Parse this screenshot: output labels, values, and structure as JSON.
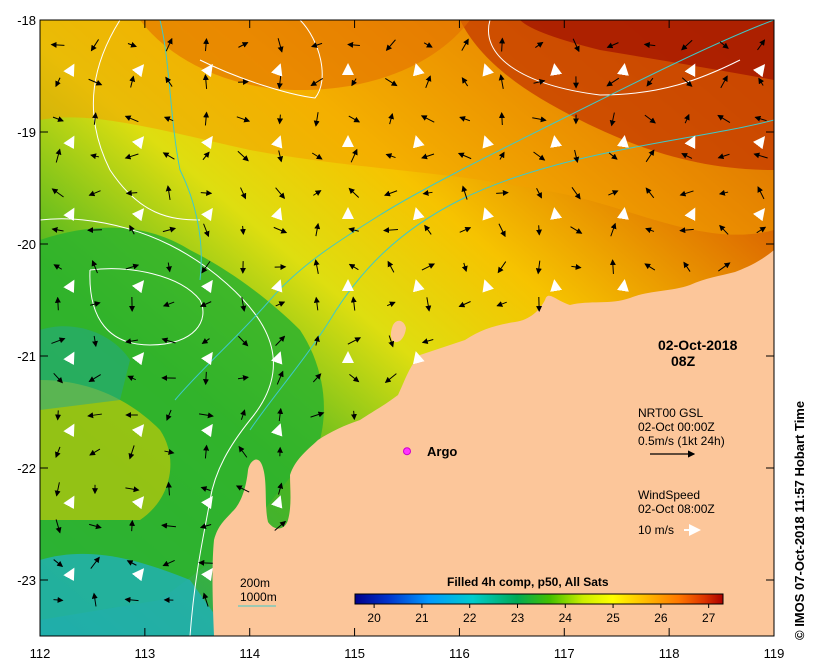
{
  "map": {
    "lon_ticks": [
      "112",
      "113",
      "114",
      "115",
      "116",
      "117",
      "118",
      "119"
    ],
    "lat_ticks": [
      "-18",
      "-19",
      "-20",
      "-21",
      "-22",
      "-23"
    ],
    "lon_range": [
      112,
      119
    ],
    "lat_range": [
      -23.5,
      -18
    ]
  },
  "date_label": {
    "date": "02-Oct-2018",
    "time": "08Z"
  },
  "current_legend": {
    "line1": "NRT00 GSL",
    "line2": "02-Oct 00:00Z",
    "line3": "0.5m/s (1kt 24h)"
  },
  "wind_legend": {
    "line1": "WindSpeed",
    "line2": "02-Oct 08:00Z",
    "line3": "10 m/s"
  },
  "argo": {
    "label": "Argo",
    "lon": 115.5,
    "lat": -21.85,
    "color": "#ff33ff"
  },
  "contour_legend": {
    "line_200": "200m",
    "line_1000": "1000m",
    "color_200": "#ffffff",
    "color_1000": "#3ec9c9"
  },
  "colorbar": {
    "title": "Filled 4h comp, p50, All Sats",
    "labels": [
      "20",
      "21",
      "22",
      "23",
      "24",
      "25",
      "26",
      "27"
    ],
    "range": [
      19.6,
      27.3
    ],
    "colors": [
      "#00008b",
      "#0033cc",
      "#0099ff",
      "#00cccc",
      "#00aa55",
      "#22bb22",
      "#99dd00",
      "#ffff00",
      "#ffbb00",
      "#ff7700",
      "#dd3300",
      "#aa0000"
    ]
  },
  "land_color": "#fcc69a",
  "credit": "© IMOS 07-Oct-2018 11:57 Hobart Time"
}
